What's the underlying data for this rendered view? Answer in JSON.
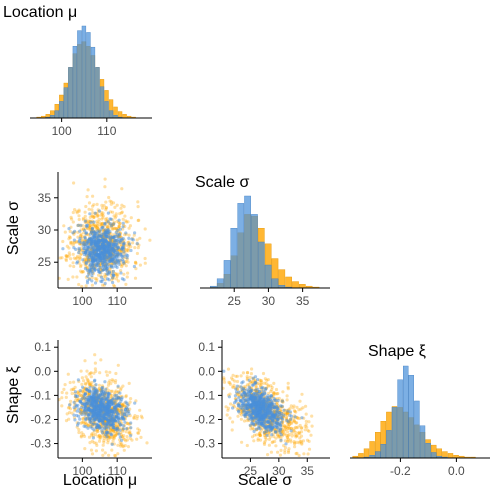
{
  "colors": {
    "prior": "#FFA500",
    "posterior": "#4A90D9",
    "overlap": "#6E9A8C",
    "axis": "#000000"
  },
  "chart_data": {
    "type": "pairs",
    "series": [
      {
        "name": "",
        "color": "#FFA500"
      },
      {
        "name": "",
        "color": "#4A90D9"
      }
    ],
    "variables": [
      {
        "key": "mu",
        "label": "Location μ",
        "ticks": [
          "100",
          "110"
        ],
        "range": [
          93,
          120
        ]
      },
      {
        "key": "sigma",
        "label": "Scale σ",
        "ticks": [
          "25",
          "30",
          "35"
        ],
        "range": [
          20,
          39
        ]
      },
      {
        "key": "xi",
        "label": "Shape ξ",
        "ticks": [
          "-0.2",
          "0.0"
        ],
        "range": [
          -0.38,
          0.12
        ]
      }
    ],
    "scatter_y_ticks": {
      "sigma": [
        "25",
        "30",
        "35"
      ],
      "xi": [
        "0.1",
        "0.0",
        "-0.1",
        "-0.2",
        "-0.3"
      ]
    },
    "histograms": {
      "mu": {
        "bins": [
          95,
          96,
          97,
          98,
          99,
          100,
          101,
          102,
          103,
          104,
          105,
          106,
          107,
          108,
          109,
          110,
          111,
          112,
          113,
          114,
          115,
          116
        ],
        "series": [
          {
            "name": "",
            "values": [
              0.01,
              0.02,
              0.04,
              0.08,
              0.15,
              0.25,
              0.38,
              0.55,
              0.7,
              0.8,
              0.83,
              0.78,
              0.68,
              0.55,
              0.42,
              0.3,
              0.2,
              0.12,
              0.07,
              0.04,
              0.02,
              0.01
            ]
          },
          {
            "name": "",
            "values": [
              0.0,
              0.0,
              0.01,
              0.03,
              0.08,
              0.18,
              0.33,
              0.55,
              0.78,
              0.95,
              1.0,
              0.93,
              0.77,
              0.55,
              0.34,
              0.18,
              0.08,
              0.03,
              0.01,
              0.0,
              0.0,
              0.0
            ]
          }
        ]
      },
      "sigma": {
        "bins": [
          21,
          22,
          23,
          24,
          25,
          26,
          27,
          28,
          29,
          30,
          31,
          32,
          33,
          34,
          35,
          36,
          37
        ],
        "series": [
          {
            "name": "",
            "values": [
              0.0,
              0.01,
              0.05,
              0.15,
              0.35,
              0.6,
              0.8,
              0.78,
              0.65,
              0.48,
              0.32,
              0.2,
              0.12,
              0.07,
              0.04,
              0.02,
              0.01
            ]
          },
          {
            "name": "",
            "values": [
              0.0,
              0.02,
              0.1,
              0.3,
              0.65,
              0.92,
              1.0,
              0.8,
              0.5,
              0.25,
              0.1,
              0.03,
              0.01,
              0.0,
              0.0,
              0.0,
              0.0
            ]
          }
        ]
      },
      "xi": {
        "bins": [
          -0.36,
          -0.34,
          -0.32,
          -0.3,
          -0.28,
          -0.26,
          -0.24,
          -0.22,
          -0.2,
          -0.18,
          -0.16,
          -0.14,
          -0.12,
          -0.1,
          -0.08,
          -0.06,
          -0.04,
          -0.02,
          0.0,
          0.02,
          0.04,
          0.06,
          0.08
        ],
        "series": [
          {
            "name": "",
            "values": [
              0.02,
              0.05,
              0.1,
              0.18,
              0.28,
              0.4,
              0.5,
              0.56,
              0.55,
              0.5,
              0.44,
              0.36,
              0.28,
              0.2,
              0.14,
              0.1,
              0.07,
              0.05,
              0.03,
              0.02,
              0.01,
              0.01,
              0.0
            ]
          },
          {
            "name": "",
            "values": [
              0.0,
              0.0,
              0.01,
              0.03,
              0.07,
              0.15,
              0.3,
              0.55,
              0.85,
              1.0,
              0.9,
              0.62,
              0.35,
              0.16,
              0.06,
              0.02,
              0.01,
              0.0,
              0.0,
              0.0,
              0.0,
              0.0,
              0.0
            ]
          }
        ]
      }
    },
    "scatter_summary": {
      "mu_sigma": [
        {
          "name": "",
          "mean": [
            105.5,
            28
          ],
          "sd": [
            4.5,
            3.2
          ],
          "rho": 0.0
        },
        {
          "name": "",
          "mean": [
            105.5,
            27
          ],
          "sd": [
            3.3,
            2.0
          ],
          "rho": 0.0
        }
      ],
      "mu_xi": [
        {
          "name": "",
          "mean": [
            105.5,
            -0.17
          ],
          "sd": [
            4.5,
            0.075
          ],
          "rho": -0.35
        },
        {
          "name": "",
          "mean": [
            105.5,
            -0.16
          ],
          "sd": [
            3.3,
            0.045
          ],
          "rho": -0.3
        }
      ],
      "sigma_xi": [
        {
          "name": "",
          "mean": [
            28,
            -0.17
          ],
          "sd": [
            3.2,
            0.075
          ],
          "rho": -0.55
        },
        {
          "name": "",
          "mean": [
            27,
            -0.16
          ],
          "sd": [
            2.0,
            0.045
          ],
          "rho": -0.5
        }
      ]
    },
    "grid": false
  }
}
